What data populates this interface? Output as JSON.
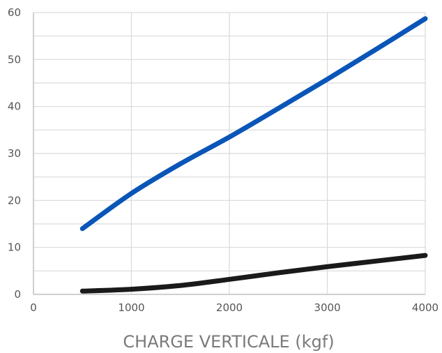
{
  "chart_data": {
    "type": "line",
    "xlabel": "CHARGE VERTICALE (kgf)",
    "ylabel": "",
    "xlim": [
      0,
      4000
    ],
    "ylim": [
      0,
      60
    ],
    "x_ticks": [
      "0",
      "1000",
      "2000",
      "3000",
      "4000"
    ],
    "y_ticks": [
      "0",
      "10",
      "20",
      "30",
      "40",
      "50",
      "60"
    ],
    "grid": true,
    "series": [
      {
        "color": "#0a55b8",
        "x": [
          500,
          1000,
          1500,
          2000,
          2500,
          3000,
          3500,
          4000
        ],
        "y": [
          14,
          21.5,
          27.8,
          33.5,
          39.6,
          45.8,
          52.2,
          58.7
        ]
      },
      {
        "color": "#1a1a1a",
        "x": [
          500,
          1000,
          1500,
          2000,
          2500,
          3000,
          3500,
          4000
        ],
        "y": [
          0.7,
          1.1,
          1.9,
          3.2,
          4.6,
          5.9,
          7.1,
          8.3
        ]
      }
    ]
  }
}
